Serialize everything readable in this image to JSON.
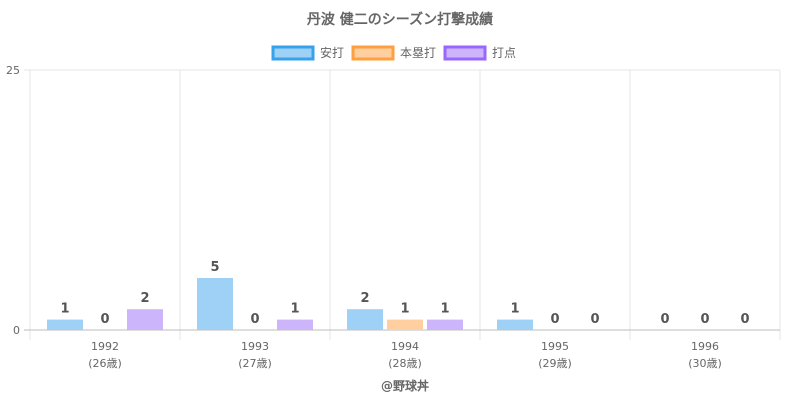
{
  "chart_data": {
    "type": "bar",
    "title": "丹波 健二のシーズン打撃成績",
    "categories": [
      [
        "1992",
        "(26歳)"
      ],
      [
        "1993",
        "(27歳)"
      ],
      [
        "1994",
        "(28歳)"
      ],
      [
        "1995",
        "(29歳)"
      ],
      [
        "1996",
        "(30歳)"
      ]
    ],
    "series": [
      {
        "name": "安打",
        "values": [
          1,
          5,
          2,
          1,
          0
        ],
        "fill": "#9fd1f7",
        "stroke": "#36a2eb"
      },
      {
        "name": "本塁打",
        "values": [
          0,
          0,
          1,
          0,
          0
        ],
        "fill": "#ffcf9f",
        "stroke": "#ff9f40"
      },
      {
        "name": "打点",
        "values": [
          2,
          1,
          1,
          0,
          0
        ],
        "fill": "#cdb5fb",
        "stroke": "#9966ff"
      }
    ],
    "ylim": [
      0,
      25
    ],
    "yticks": [
      0,
      25
    ],
    "grid": true,
    "legend": "top",
    "data_labels": true,
    "xlabel": "",
    "ylabel": ""
  },
  "credit": "@野球丼"
}
